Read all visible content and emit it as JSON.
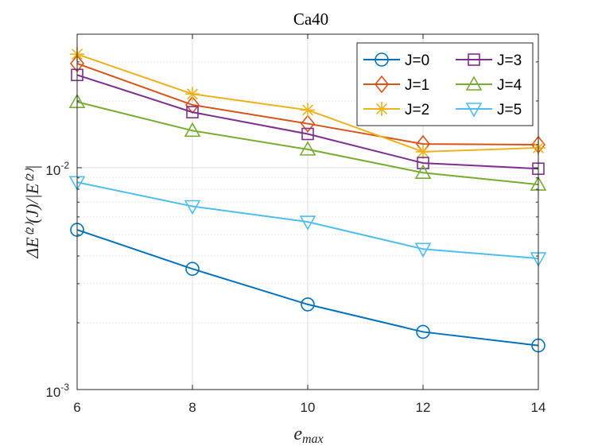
{
  "chart_data": {
    "type": "line",
    "title": "Ca40",
    "xlabel": "e_max",
    "xlabel_main": "e",
    "xlabel_sub": "max",
    "ylabel": "ΔE⁽²⁾(J)/|E⁽²⁾|",
    "yscale": "log",
    "x": [
      6,
      8,
      10,
      12,
      14
    ],
    "xlim": [
      6,
      14
    ],
    "ylim": [
      0.001,
      0.04
    ],
    "xticks": [
      "6",
      "8",
      "10",
      "12",
      "14"
    ],
    "yticks": [
      {
        "value": 0.001,
        "base": "10",
        "exp": "-3"
      },
      {
        "value": 0.01,
        "base": "10",
        "exp": "-2"
      }
    ],
    "grid": true,
    "legend_position": "top-right",
    "series": [
      {
        "name": "J=0",
        "color": "#0072BD",
        "marker": "circle",
        "values": [
          0.00525,
          0.0035,
          0.00242,
          0.00182,
          0.00158
        ]
      },
      {
        "name": "J=1",
        "color": "#D95319",
        "marker": "diamond",
        "values": [
          0.0295,
          0.0192,
          0.0158,
          0.0128,
          0.0127
        ]
      },
      {
        "name": "J=2",
        "color": "#EDB120",
        "marker": "asterisk",
        "values": [
          0.0325,
          0.0215,
          0.0182,
          0.0118,
          0.0123
        ]
      },
      {
        "name": "J=3",
        "color": "#7E2F8E",
        "marker": "square",
        "values": [
          0.0262,
          0.0178,
          0.0142,
          0.0105,
          0.0099
        ]
      },
      {
        "name": "J=4",
        "color": "#77AC30",
        "marker": "triangle-up",
        "values": [
          0.0198,
          0.0147,
          0.0121,
          0.0095,
          0.0084
        ]
      },
      {
        "name": "J=5",
        "color": "#4DBEEE",
        "marker": "triangle-down",
        "values": [
          0.0086,
          0.0067,
          0.0057,
          0.0043,
          0.0039
        ]
      }
    ]
  }
}
